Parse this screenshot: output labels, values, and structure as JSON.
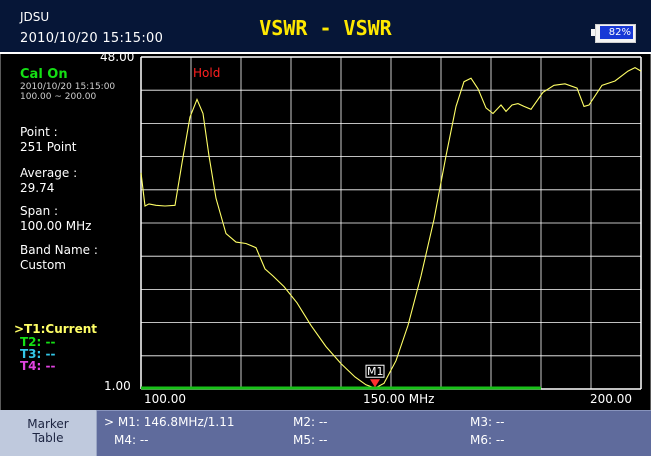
{
  "header": {
    "brand": "JDSU",
    "datetime": "2010/10/20 15:15:00",
    "title": "VSWR - VSWR",
    "battery": "82%",
    "battery_level": 0.82,
    "colors": {
      "header_bg": "#061637",
      "title": "#ffe800",
      "battery_fill": "#1838d6"
    }
  },
  "panel": {
    "cal_status": "Cal On",
    "cal_datetime": "2010/10/20 15:15:00",
    "cal_range": "100.00 ~ 200.00",
    "point_label": "Point :",
    "point_value": "251 Point",
    "average_label": "Average :",
    "average_value": "29.74",
    "span_label": "Span :",
    "span_value": "100.00 MHz",
    "band_label": "Band Name :",
    "band_value": "Custom",
    "traces": [
      {
        "label": ">T1:Current",
        "color": "#ffff66"
      },
      {
        "label": "T2: --",
        "color": "#14e014"
      },
      {
        "label": "T3: --",
        "color": "#33c6e6"
      },
      {
        "label": "T4: --",
        "color": "#e044e0"
      }
    ]
  },
  "plot": {
    "hold_label": "Hold",
    "marker_label": "M1",
    "y_top_label": "48.00",
    "y_bottom_label": "1.00",
    "x_labels": [
      "100.00",
      "150.00 MHz",
      "200.00"
    ],
    "colors": {
      "trace": "#ffff66",
      "grid": "#ffffff",
      "limit_line": "#18c018",
      "marker": "#ff3030",
      "hold": "#ff2020"
    }
  },
  "chart_data": {
    "type": "line",
    "x_unit": "MHz",
    "xlim": [
      100,
      200
    ],
    "ylim": [
      1,
      48
    ],
    "grid": true,
    "series": [
      {
        "points": [
          [
            100,
            31.6
          ],
          [
            100.8,
            26.9
          ],
          [
            101.6,
            27.2
          ],
          [
            103,
            27.0
          ],
          [
            104.8,
            26.9
          ],
          [
            106.8,
            27.0
          ],
          [
            108.2,
            33.0
          ],
          [
            109.8,
            39.5
          ],
          [
            111.2,
            42.0
          ],
          [
            112.4,
            40.0
          ],
          [
            113.6,
            34.0
          ],
          [
            115,
            28.0
          ],
          [
            117,
            23.0
          ],
          [
            119,
            21.8
          ],
          [
            121,
            21.6
          ],
          [
            123,
            21.0
          ],
          [
            124.8,
            18.0
          ],
          [
            126.4,
            17.0
          ],
          [
            128.6,
            15.5
          ],
          [
            131.2,
            13.2
          ],
          [
            134,
            10.0
          ],
          [
            137,
            7.0
          ],
          [
            140,
            4.6
          ],
          [
            142.8,
            2.7
          ],
          [
            145,
            1.6
          ],
          [
            146.8,
            1.11
          ],
          [
            148.6,
            1.8
          ],
          [
            151,
            5.0
          ],
          [
            153.4,
            10.0
          ],
          [
            156,
            17.0
          ],
          [
            158.6,
            25.0
          ],
          [
            161,
            34.0
          ],
          [
            163,
            41.0
          ],
          [
            164.6,
            44.5
          ],
          [
            166,
            45.0
          ],
          [
            167.4,
            43.5
          ],
          [
            169,
            40.8
          ],
          [
            170.4,
            40.0
          ],
          [
            172,
            41.2
          ],
          [
            173,
            40.3
          ],
          [
            174.2,
            41.2
          ],
          [
            175.4,
            41.4
          ],
          [
            176.6,
            41.0
          ],
          [
            178,
            40.6
          ],
          [
            180.4,
            43.0
          ],
          [
            182.6,
            44.0
          ],
          [
            184.8,
            44.2
          ],
          [
            187.2,
            43.6
          ],
          [
            188.6,
            41.0
          ],
          [
            189.6,
            41.2
          ],
          [
            192.2,
            44.0
          ],
          [
            194.8,
            44.6
          ],
          [
            197.4,
            46.0
          ],
          [
            198.8,
            46.5
          ],
          [
            200,
            46.0
          ]
        ]
      }
    ],
    "markers": [
      {
        "name": "M1",
        "x": 146.8,
        "y": 1.11
      }
    ],
    "limit_line": {
      "y": 1.0,
      "x_range": [
        100,
        180
      ]
    }
  },
  "marker_table": {
    "title_line1": "Marker",
    "title_line2": "Table",
    "cells": [
      [
        "> M1: 146.8MHz/1.11",
        "M2: --",
        "M3: --"
      ],
      [
        "M4: --",
        "M5: --",
        "M6: --"
      ]
    ]
  }
}
